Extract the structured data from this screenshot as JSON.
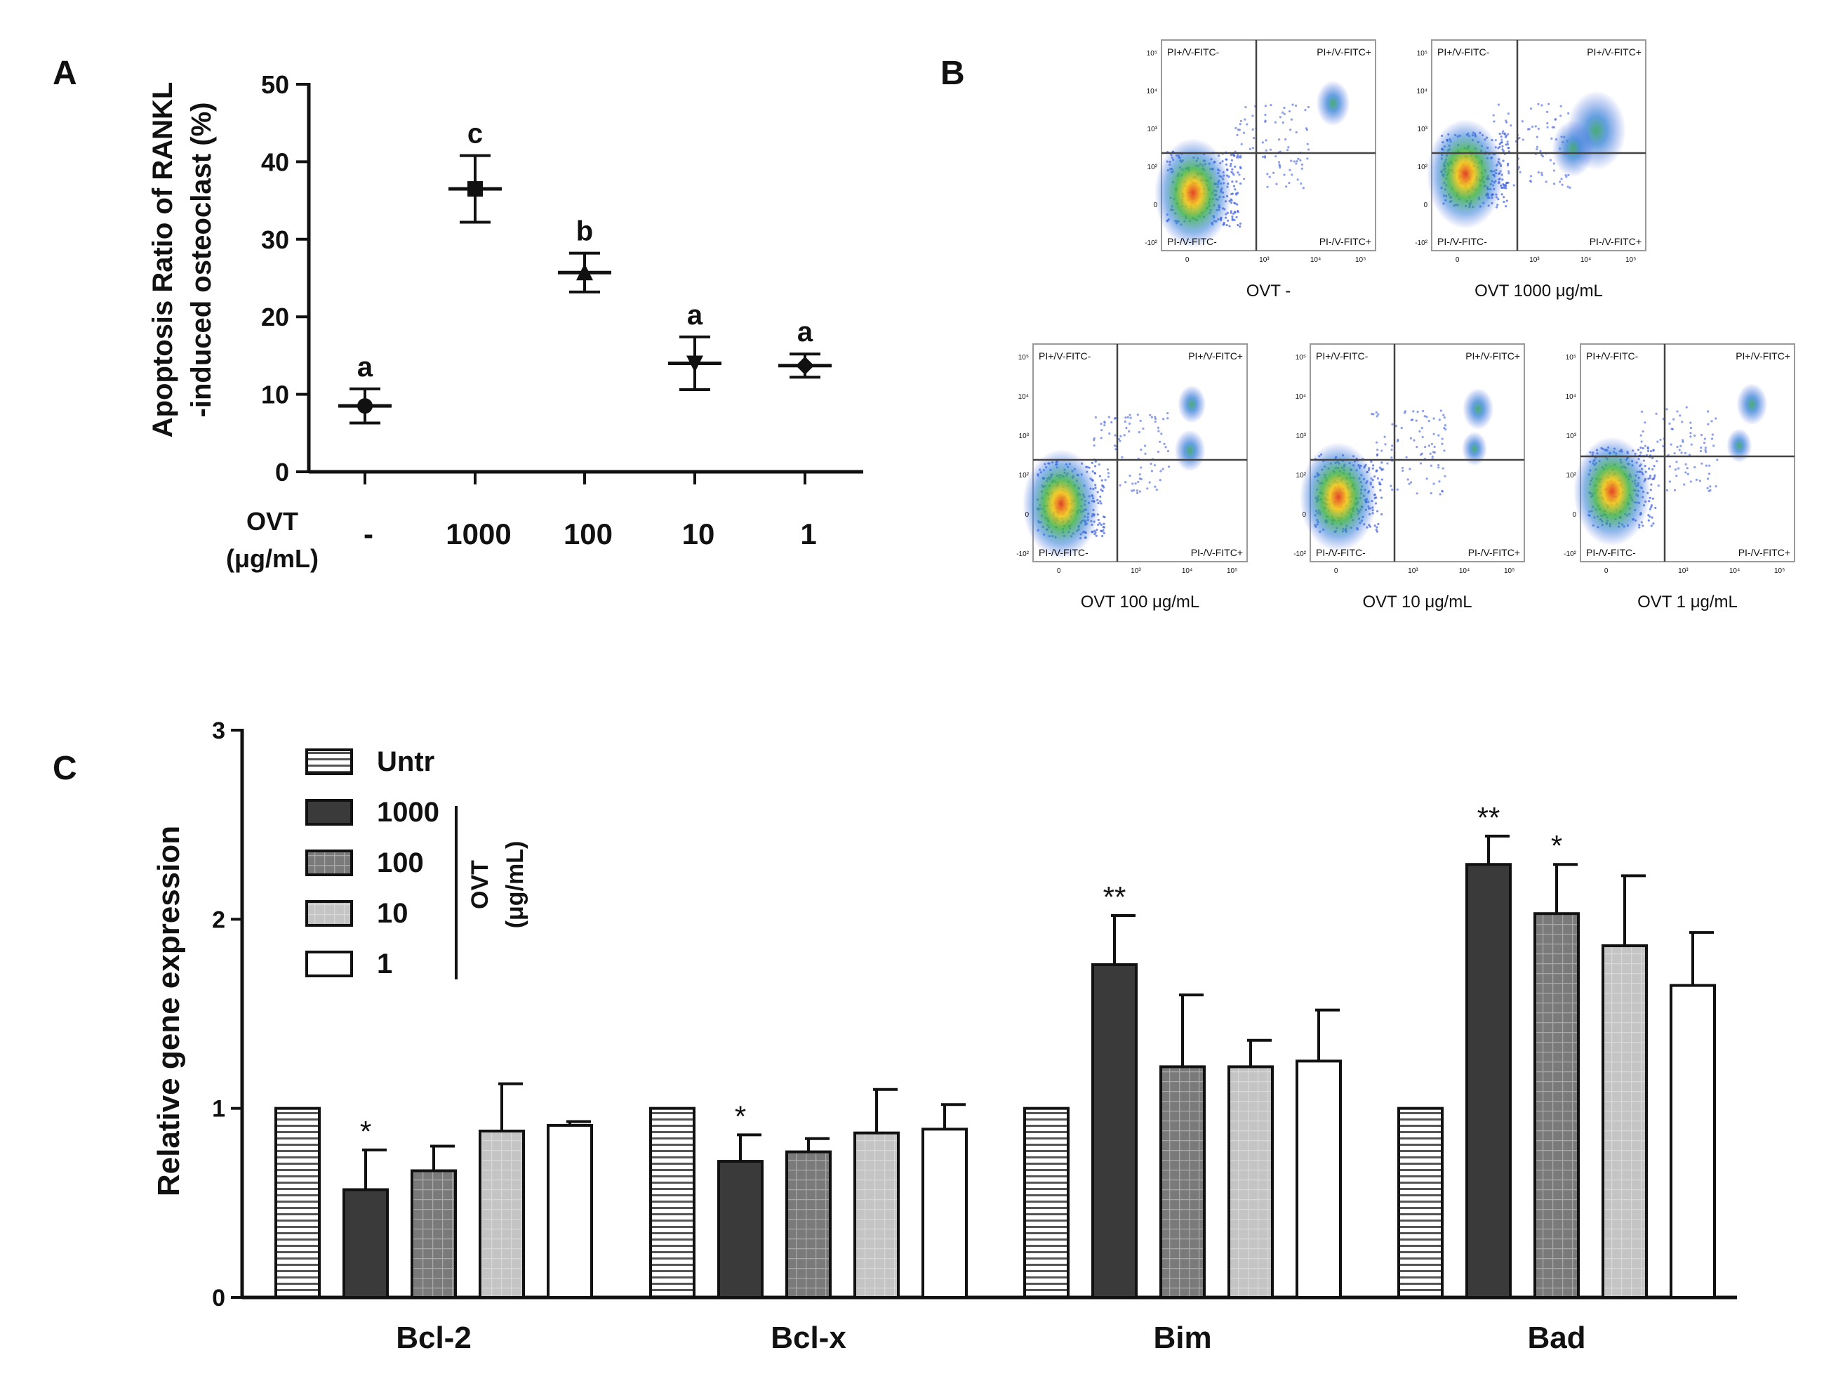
{
  "panels": {
    "a": "A",
    "b": "B",
    "c": "C"
  },
  "colors": {
    "axis": "#111111",
    "bar_untr": "#ffffff",
    "bar_1000": "#3a3a3a",
    "bar_100": "#7a7a7a",
    "bar_10": "#c4c4c4",
    "bar_1": "#ffffff"
  },
  "chart_data": [
    {
      "type": "scatter",
      "panel": "A",
      "ylabel_line1": "Apoptosis Ratio of RANKL",
      "ylabel_line2": "-induced osteoclast (%)",
      "xlabel_line1": "OVT",
      "xlabel_line2": "(μg/mL)",
      "ylim": [
        0,
        50
      ],
      "yticks": [
        "0",
        "10",
        "20",
        "30",
        "40",
        "50"
      ],
      "categories": [
        "-",
        "1000",
        "100",
        "10",
        "1"
      ],
      "values": [
        8.5,
        36.5,
        25.7,
        14.0,
        13.7
      ],
      "err": [
        2.2,
        4.3,
        2.5,
        3.4,
        1.5
      ],
      "letters": [
        "a",
        "c",
        "b",
        "a",
        "a"
      ],
      "markers": [
        "circle",
        "square",
        "triangle-up",
        "triangle-down",
        "diamond"
      ]
    },
    {
      "type": "scatter",
      "panel": "B",
      "plots": [
        {
          "caption": "OVT -",
          "quadrants": {
            "ul": "PI+/V-FITC-",
            "ur": "PI+/V-FITC+",
            "ll": "PI-/V-FITC-",
            "lr": "PI-/V-FITC+"
          }
        },
        {
          "caption": "OVT 1000 μg/mL",
          "quadrants": {
            "ul": "PI+/V-FITC-",
            "ur": "PI+/V-FITC+",
            "ll": "PI-/V-FITC-",
            "lr": "PI-/V-FITC+"
          }
        },
        {
          "caption": "OVT 100 μg/mL",
          "quadrants": {
            "ul": "PI+/V-FITC-",
            "ur": "PI+/V-FITC+",
            "ll": "PI-/V-FITC-",
            "lr": "PI-/V-FITC+"
          }
        },
        {
          "caption": "OVT 10 μg/mL",
          "quadrants": {
            "ul": "PI+/V-FITC-",
            "ur": "PI+/V-FITC+",
            "ll": "PI-/V-FITC-",
            "lr": "PI-/V-FITC+"
          }
        },
        {
          "caption": "OVT 1 μg/mL",
          "quadrants": {
            "ul": "PI+/V-FITC-",
            "ur": "PI+/V-FITC+",
            "ll": "PI-/V-FITC-",
            "lr": "PI-/V-FITC+"
          }
        }
      ],
      "ytick_labels": [
        "10⁵",
        "10⁴",
        "10³",
        "10²",
        "0",
        "-10²"
      ],
      "xtick_labels": [
        "0",
        "10³",
        "10⁴",
        "10⁵"
      ]
    },
    {
      "type": "bar",
      "panel": "C",
      "ylabel": "Relative gene expression",
      "ylim": [
        0,
        3
      ],
      "yticks": [
        "0",
        "1",
        "2",
        "3"
      ],
      "categories": [
        "Bcl-2",
        "Bcl-x",
        "Bim",
        "Bad"
      ],
      "legend": {
        "group_label_line1": "OVT",
        "group_label_line2": "(μg/mL)",
        "entries": [
          "Untr",
          "1000",
          "100",
          "10",
          "1"
        ]
      },
      "series": [
        {
          "name": "Untr",
          "values": [
            1.0,
            1.0,
            1.0,
            1.0
          ],
          "err": [
            0,
            0,
            0,
            0
          ],
          "sig": [
            "",
            "",
            "",
            ""
          ]
        },
        {
          "name": "1000",
          "values": [
            0.57,
            0.72,
            1.76,
            2.29
          ],
          "err": [
            0.21,
            0.14,
            0.26,
            0.15
          ],
          "sig": [
            "*",
            "*",
            "**",
            "**"
          ]
        },
        {
          "name": "100",
          "values": [
            0.67,
            0.77,
            1.22,
            2.03
          ],
          "err": [
            0.13,
            0.07,
            0.38,
            0.26
          ],
          "sig": [
            "",
            "",
            "",
            "*"
          ]
        },
        {
          "name": "10",
          "values": [
            0.88,
            0.87,
            1.22,
            1.86
          ],
          "err": [
            0.25,
            0.23,
            0.14,
            0.37
          ],
          "sig": [
            "",
            "",
            "",
            ""
          ]
        },
        {
          "name": "1",
          "values": [
            0.91,
            0.89,
            1.25,
            1.65
          ],
          "err": [
            0.02,
            0.13,
            0.27,
            0.28
          ],
          "sig": [
            "",
            "",
            "",
            ""
          ]
        }
      ]
    }
  ]
}
